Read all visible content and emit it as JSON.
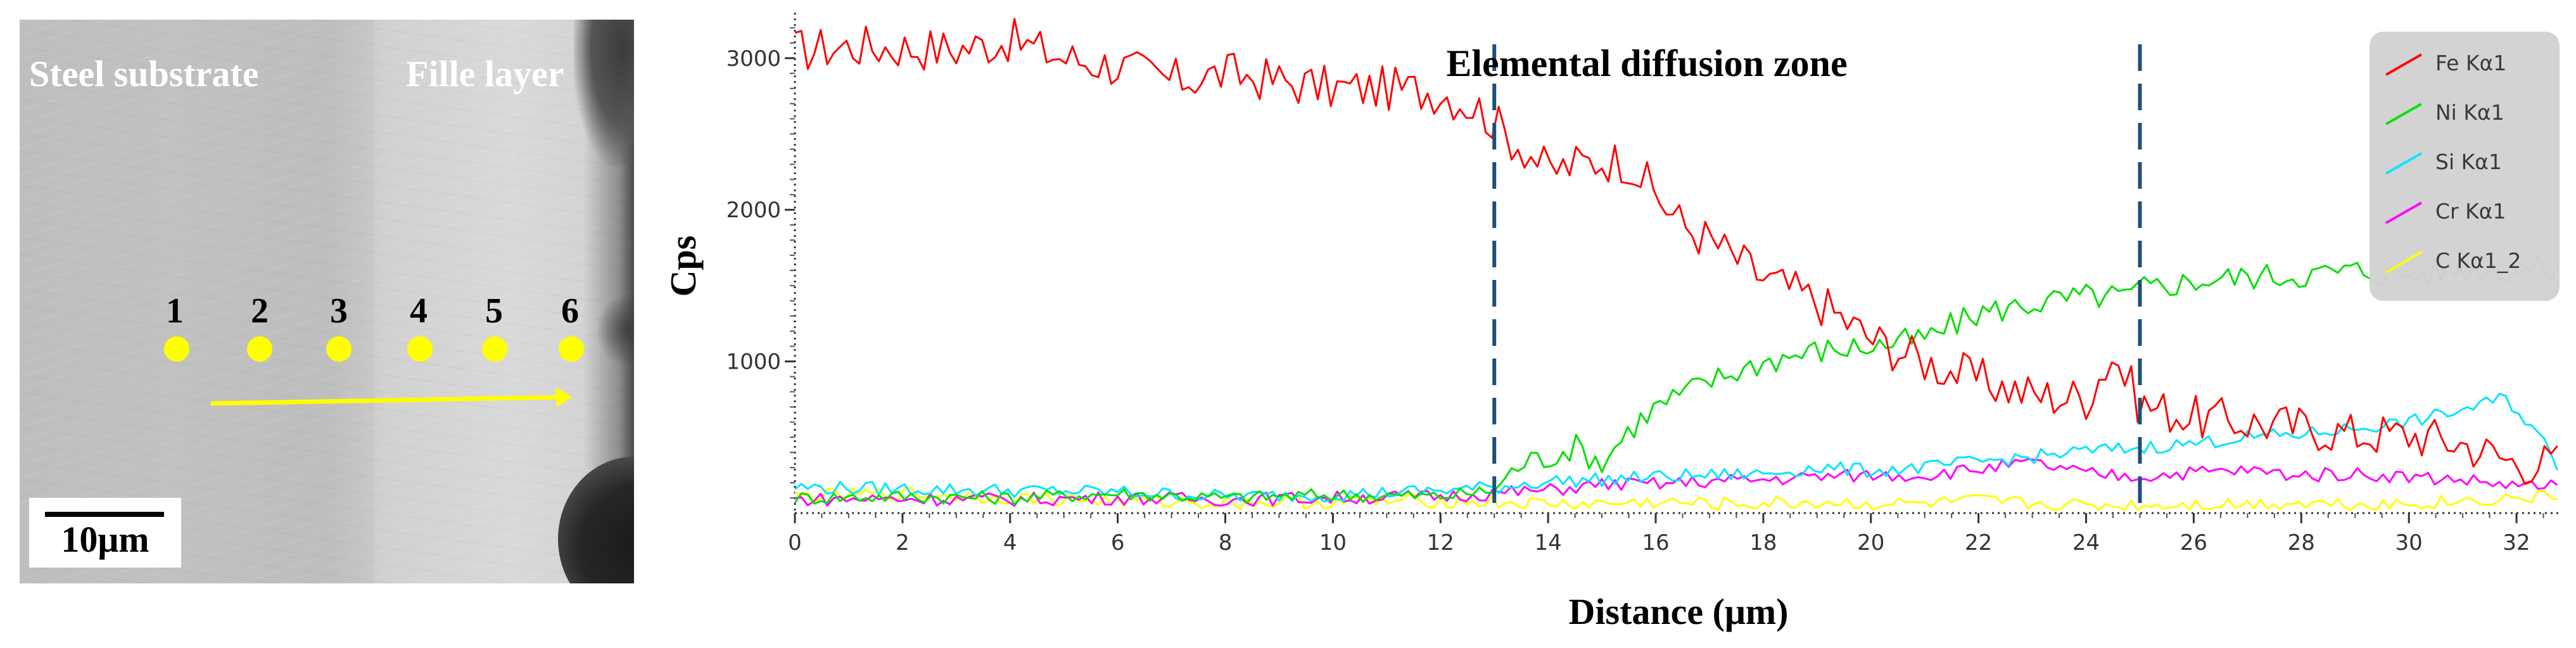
{
  "sem_image": {
    "steel_label": "Steel substrate",
    "filler_label": "Fille layer",
    "points": [
      {
        "label": "1"
      },
      {
        "label": "2"
      },
      {
        "label": "3"
      },
      {
        "label": "4"
      },
      {
        "label": "5"
      },
      {
        "label": "6"
      }
    ],
    "scale_bar_label": "10μm",
    "point_color": "#ffff00"
  },
  "chart_data": {
    "type": "line",
    "title": "Elemental diffusion zone",
    "xlabel": "Distance (μm)",
    "ylabel": "Cps",
    "xlim": [
      0,
      32.8
    ],
    "ylim": [
      0,
      3300
    ],
    "x_ticks": [
      0,
      2,
      4,
      6,
      8,
      10,
      12,
      14,
      16,
      18,
      20,
      22,
      24,
      26,
      28,
      30,
      32
    ],
    "y_ticks": [
      1000,
      2000,
      3000
    ],
    "tick_labels_x": [
      "0",
      "2",
      "4",
      "6",
      "8",
      "10",
      "12",
      "14",
      "16",
      "18",
      "20",
      "22",
      "24",
      "26",
      "28",
      "30",
      "32"
    ],
    "tick_labels_y": [
      "1000",
      "2000",
      "3000"
    ],
    "zone_markers_x": [
      13,
      25
    ],
    "zone_marker_color": "#1f4e79",
    "legend_position": "top-right",
    "grid": false,
    "series": [
      {
        "name": "Fe Kα1",
        "color": "#ff0000",
        "x": [
          0,
          1,
          2,
          3,
          4,
          5,
          6,
          7,
          8,
          9,
          10,
          11,
          12,
          12.8,
          13.2,
          13.6,
          14,
          14.5,
          15,
          15.5,
          16,
          16.5,
          17,
          18,
          19,
          20,
          21,
          22,
          23,
          24,
          24.5,
          25,
          26,
          27,
          28,
          29,
          30,
          31,
          32,
          32.8
        ],
        "y": [
          3050,
          3080,
          3070,
          3060,
          3120,
          3000,
          2950,
          2850,
          2900,
          2850,
          2800,
          2800,
          2780,
          2650,
          2500,
          2400,
          2250,
          2300,
          2330,
          2320,
          2100,
          1900,
          1800,
          1550,
          1400,
          1150,
          1000,
          880,
          780,
          760,
          1050,
          720,
          630,
          600,
          570,
          520,
          520,
          460,
          330,
          330
        ]
      },
      {
        "name": "Ni Kα1",
        "color": "#00e000",
        "x": [
          0,
          2,
          4,
          6,
          8,
          10,
          12,
          13,
          13.5,
          14,
          14.5,
          15,
          15.5,
          16,
          17,
          18,
          19,
          20,
          21,
          22,
          23,
          24,
          24.8,
          25,
          26,
          27,
          28,
          29,
          30,
          31,
          32,
          32.8
        ],
        "y": [
          100,
          110,
          100,
          130,
          100,
          120,
          110,
          150,
          330,
          370,
          440,
          330,
          550,
          700,
          870,
          1000,
          1070,
          1100,
          1150,
          1320,
          1380,
          1430,
          1430,
          1480,
          1530,
          1560,
          1570,
          1600,
          1570,
          1610,
          1600,
          1620
        ]
      },
      {
        "name": "Si Kα1",
        "color": "#00e5ff",
        "x": [
          0,
          2,
          4,
          6,
          8,
          10,
          12,
          13,
          14,
          15,
          16,
          17,
          18,
          19,
          20,
          21,
          22,
          23,
          24,
          25,
          26,
          27,
          28,
          29,
          30,
          31,
          31.8,
          32.4,
          32.8
        ],
        "y": [
          170,
          160,
          150,
          140,
          110,
          120,
          150,
          170,
          210,
          220,
          240,
          250,
          260,
          300,
          280,
          300,
          340,
          370,
          410,
          430,
          460,
          500,
          520,
          560,
          600,
          680,
          760,
          520,
          300
        ]
      },
      {
        "name": "Cr Kα1",
        "color": "#ff00ff",
        "x": [
          0,
          2,
          4,
          6,
          8,
          10,
          12,
          13,
          14,
          15,
          16,
          17,
          18,
          19,
          20,
          21,
          22,
          23,
          24,
          25,
          26,
          27,
          28,
          29,
          30,
          31,
          32,
          32.8
        ],
        "y": [
          90,
          95,
          90,
          100,
          90,
          100,
          110,
          130,
          150,
          190,
          190,
          210,
          220,
          240,
          250,
          250,
          290,
          330,
          260,
          240,
          270,
          280,
          250,
          260,
          240,
          220,
          180,
          170
        ]
      },
      {
        "name": "C Kα1_2",
        "color": "#ffff00",
        "x": [
          0,
          2,
          4,
          6,
          8,
          10,
          12,
          13,
          14,
          15,
          16,
          17,
          18,
          19,
          20,
          21,
          22,
          23,
          24,
          25,
          26,
          27,
          28,
          29,
          30,
          31,
          32,
          32.8
        ],
        "y": [
          110,
          130,
          100,
          80,
          70,
          70,
          80,
          70,
          60,
          60,
          70,
          60,
          60,
          70,
          60,
          60,
          80,
          60,
          50,
          50,
          60,
          60,
          70,
          60,
          60,
          80,
          100,
          110
        ]
      }
    ]
  }
}
